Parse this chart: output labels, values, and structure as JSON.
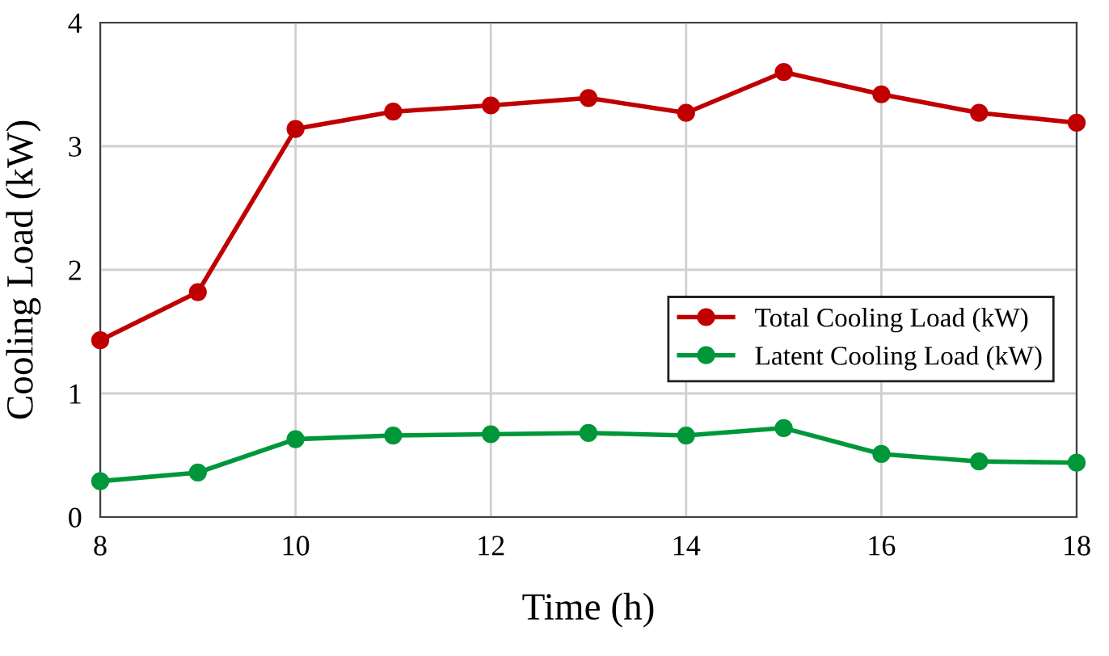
{
  "chart_data": {
    "type": "line",
    "xlabel": "Time (h)",
    "ylabel": "Cooling Load (kW)",
    "x": [
      8,
      9,
      10,
      11,
      12,
      13,
      14,
      15,
      16,
      17,
      18
    ],
    "series": [
      {
        "name": "Total Cooling Load (kW)",
        "color": "#c00000",
        "values": [
          1.43,
          1.82,
          3.14,
          3.28,
          3.33,
          3.39,
          3.27,
          3.6,
          3.42,
          3.27,
          3.19
        ]
      },
      {
        "name": "Latent Cooling Load (kW)",
        "color": "#00973a",
        "values": [
          0.29,
          0.36,
          0.63,
          0.66,
          0.67,
          0.68,
          0.66,
          0.72,
          0.51,
          0.45,
          0.44
        ]
      }
    ],
    "xlim": [
      8,
      18
    ],
    "xticks": [
      8,
      10,
      12,
      14,
      16,
      18
    ],
    "ylim": [
      0,
      4
    ],
    "yticks": [
      0,
      1,
      2,
      3,
      4
    ],
    "grid": true,
    "legend": "right",
    "marker": "circle",
    "line_style": "solid"
  }
}
